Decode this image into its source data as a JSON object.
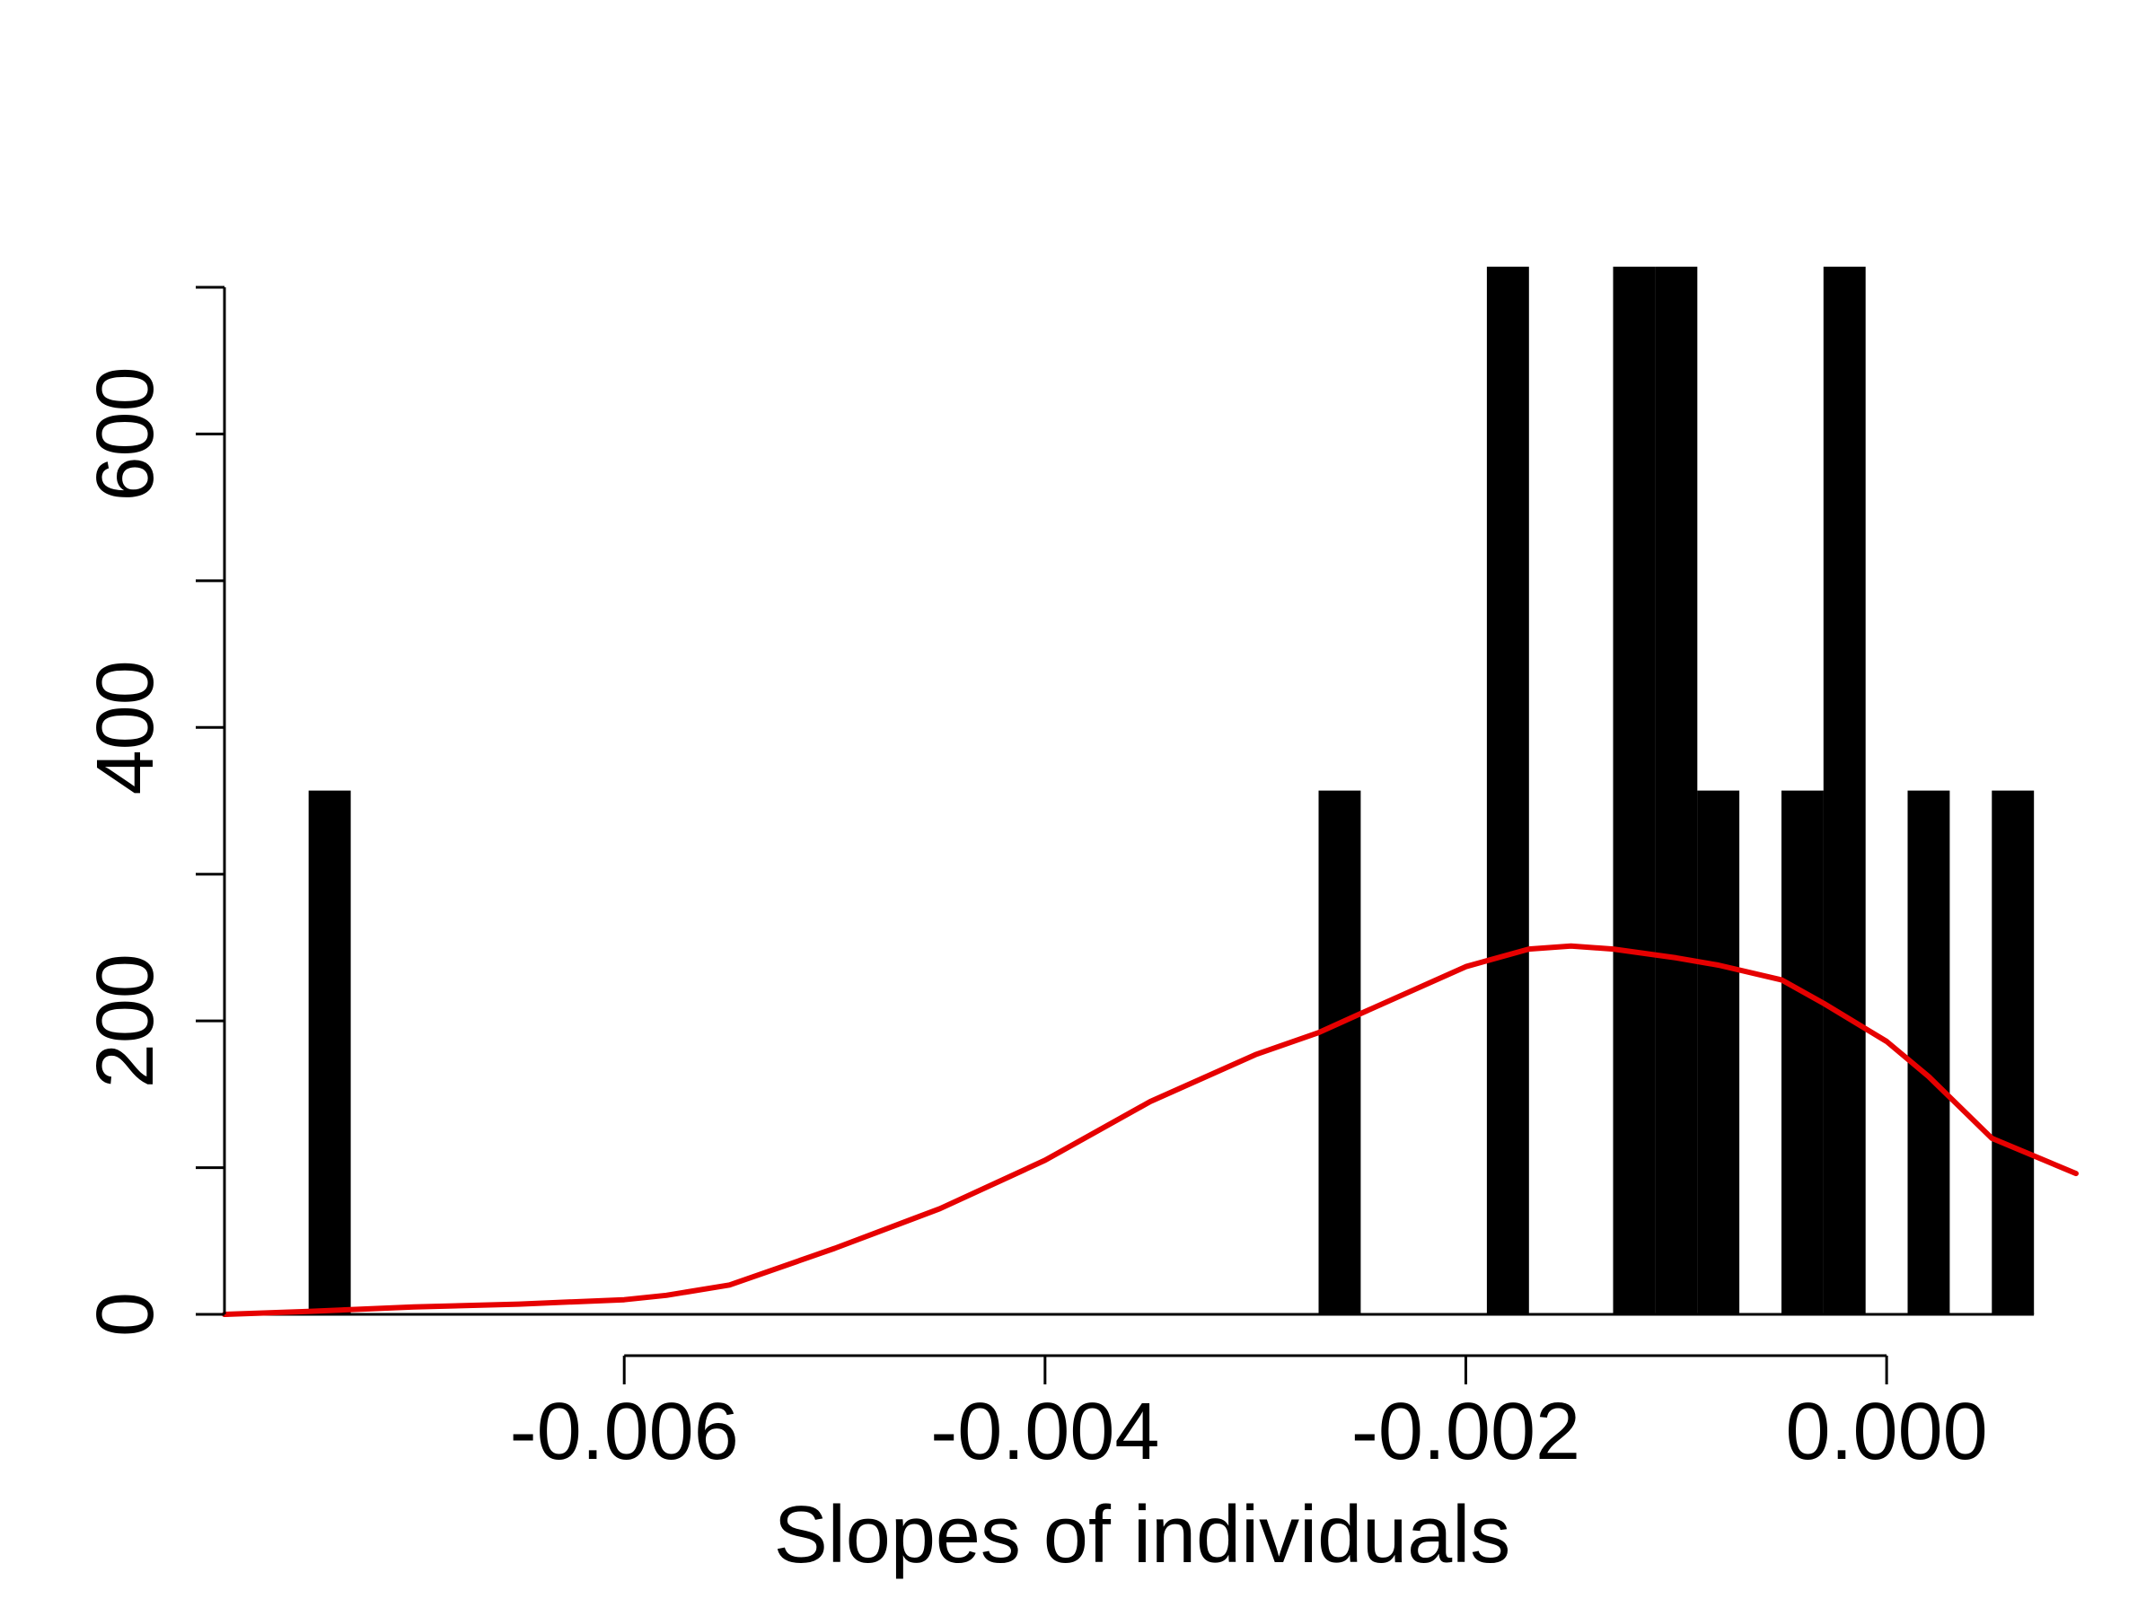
{
  "chart_data": {
    "type": "bar",
    "title": "",
    "xlabel": "Slopes of individuals",
    "ylabel": "",
    "xlim": [
      -0.0079,
      0.0009
    ],
    "ylim": [
      0,
      700
    ],
    "x_ticks": [
      -0.006,
      -0.004,
      -0.002,
      0.0
    ],
    "x_tick_labels": [
      "-0.006",
      "-0.004",
      "-0.002",
      "0.000"
    ],
    "y_ticks": [
      0,
      100,
      200,
      300,
      400,
      500,
      600,
      700
    ],
    "y_tick_labels": [
      "0",
      "200",
      "400",
      "600"
    ],
    "y_labeled_ticks": [
      0,
      200,
      400,
      600
    ],
    "grid": false,
    "bin_width": 0.0002,
    "bars": [
      {
        "x0": -0.0075,
        "x1": -0.0073,
        "value": 357
      },
      {
        "x0": -0.0027,
        "x1": -0.0025,
        "value": 357
      },
      {
        "x0": -0.0019,
        "x1": -0.0017,
        "value": 714
      },
      {
        "x0": -0.0013,
        "x1": -0.0011,
        "value": 714
      },
      {
        "x0": -0.0011,
        "x1": -0.0009,
        "value": 714
      },
      {
        "x0": -0.0009,
        "x1": -0.0007,
        "value": 357
      },
      {
        "x0": -0.0005,
        "x1": -0.0003,
        "value": 357
      },
      {
        "x0": -0.0003,
        "x1": -0.0001,
        "value": 714
      },
      {
        "x0": 0.0001,
        "x1": 0.0003,
        "value": 357
      },
      {
        "x0": 0.0005,
        "x1": 0.0007,
        "value": 357
      }
    ],
    "series": [
      {
        "type": "line",
        "color": "#e60000",
        "x": [
          -0.0079,
          -0.0075,
          -0.007,
          -0.0065,
          -0.006,
          -0.0058,
          -0.0055,
          -0.005,
          -0.0045,
          -0.004,
          -0.0035,
          -0.003,
          -0.0027,
          -0.0025,
          -0.002,
          -0.0017,
          -0.0015,
          -0.0013,
          -0.001,
          -0.0008,
          -0.0005,
          -0.0003,
          0.0,
          0.0002,
          0.0005,
          0.0009
        ],
        "y": [
          0,
          2,
          5,
          7,
          10,
          13,
          20,
          45,
          72,
          105,
          145,
          177,
          192,
          205,
          237,
          249,
          251,
          249,
          243,
          238,
          228,
          212,
          186,
          162,
          120,
          96
        ]
      }
    ]
  }
}
